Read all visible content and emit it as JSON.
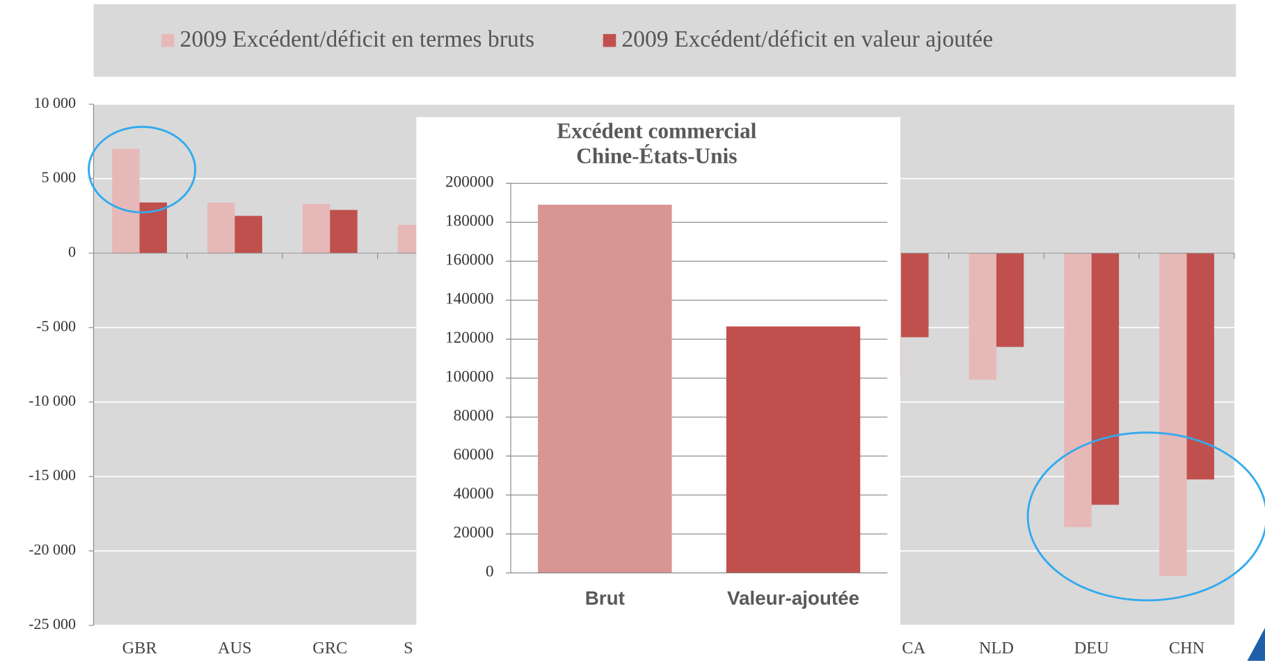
{
  "chart_data": [
    {
      "type": "bar",
      "categories": [
        "GBR",
        "AUS",
        "GRC",
        "S",
        null,
        null,
        null,
        null,
        "CA",
        "NLD",
        "DEU",
        "CHN"
      ],
      "series": [
        {
          "name": "2009 Excédent/déficit en termes bruts",
          "color": "#e6b9b8",
          "values": [
            7000,
            3400,
            3300,
            1900,
            null,
            null,
            null,
            null,
            -8300,
            -8500,
            -18400,
            -21700
          ]
        },
        {
          "name": "2009 Excédent/déficit en valeur ajoutée",
          "color": "#c0504d",
          "values": [
            3400,
            2500,
            2900,
            null,
            null,
            null,
            null,
            null,
            -5650,
            -6300,
            -16900,
            -15200
          ]
        }
      ],
      "ylim": [
        -25000,
        10000
      ],
      "yticks": [
        {
          "value": -25000,
          "label": "-25 000"
        },
        {
          "value": -20000,
          "label": "-20 000"
        },
        {
          "value": -15000,
          "label": "-15 000"
        },
        {
          "value": -10000,
          "label": "-10 000"
        },
        {
          "value": -5000,
          "label": "-5 000"
        },
        0,
        {
          "value": 5000,
          "label": "5 000"
        },
        {
          "value": 10000,
          "label": "10 000"
        }
      ],
      "grid": true,
      "legend": "top"
    },
    {
      "type": "bar",
      "title": [
        "Excédent commercial",
        "Chine-États-Unis"
      ],
      "categories": [
        "Brut",
        "Valeur-ajoutée"
      ],
      "values": [
        189000,
        126500
      ],
      "colors": [
        "#d99594",
        "#c0504d"
      ],
      "ylim": [
        0,
        200000
      ],
      "yticks": [
        0,
        20000,
        40000,
        60000,
        80000,
        100000,
        120000,
        140000,
        160000,
        180000,
        200000
      ],
      "grid": true
    }
  ]
}
